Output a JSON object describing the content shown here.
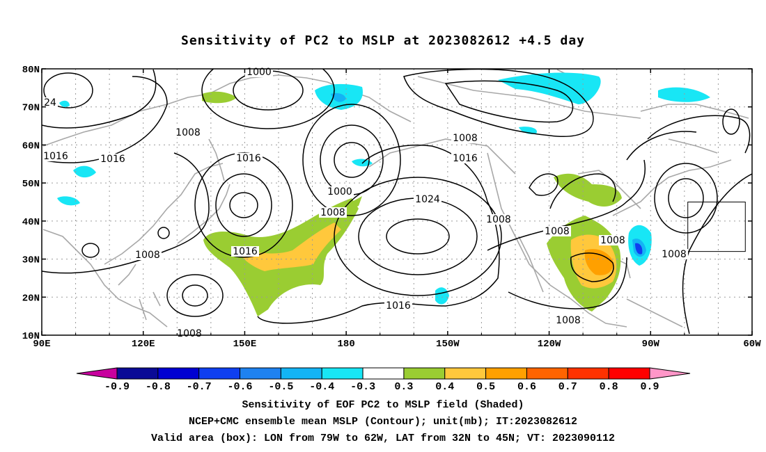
{
  "title": "Sensitivity of PC2 to MSLP at 2023082612 +4.5 day",
  "axes": {
    "lat_ticks": [
      "10N",
      "20N",
      "30N",
      "40N",
      "50N",
      "60N",
      "70N",
      "80N"
    ],
    "lon_ticks": [
      "90E",
      "120E",
      "150E",
      "180",
      "150W",
      "120W",
      "90W",
      "60W"
    ],
    "lon_range_east": [
      90,
      300
    ],
    "lat_range": [
      10,
      80
    ],
    "grid": "dotted"
  },
  "valid_box": {
    "lon_west": -79,
    "lon_east": -62,
    "lat_south": 32,
    "lat_north": 45
  },
  "contour_labels": [
    {
      "text": "1000"
    },
    {
      "text": "24"
    },
    {
      "text": "1008"
    },
    {
      "text": "1016"
    },
    {
      "text": "1016"
    },
    {
      "text": "1016"
    },
    {
      "text": "1008"
    },
    {
      "text": "1016"
    },
    {
      "text": "1000"
    },
    {
      "text": "1008"
    },
    {
      "text": "1016"
    },
    {
      "text": "1024"
    },
    {
      "text": "1008"
    },
    {
      "text": "1008"
    },
    {
      "text": "1016"
    },
    {
      "text": "1008"
    },
    {
      "text": "1008"
    },
    {
      "text": "1008"
    },
    {
      "text": "1008"
    },
    {
      "text": "1008"
    }
  ],
  "colorbar": {
    "labels": [
      "-0.9",
      "-0.8",
      "-0.7",
      "-0.6",
      "-0.5",
      "-0.4",
      "-0.3",
      "0.3",
      "0.4",
      "0.5",
      "0.6",
      "0.7",
      "0.8",
      "0.9"
    ],
    "colors": [
      "#c8009e",
      "#0a0a96",
      "#0000d2",
      "#0f3ff0",
      "#1e82f0",
      "#13b4f5",
      "#18e6f5",
      "#ffffff",
      "#9acd32",
      "#ffc83c",
      "#ffa000",
      "#ff6400",
      "#ff3200",
      "#ff0000",
      "#ff96c8"
    ]
  },
  "captions": [
    "Sensitivity of EOF PC2 to MSLP field (Shaded)",
    "NCEP+CMC ensemble mean MSLP (Contour); unit(mb); IT:2023082612",
    "Valid area (box): LON from 79W to 62W, LAT from 32N to 45N; VT: 2023090112"
  ]
}
